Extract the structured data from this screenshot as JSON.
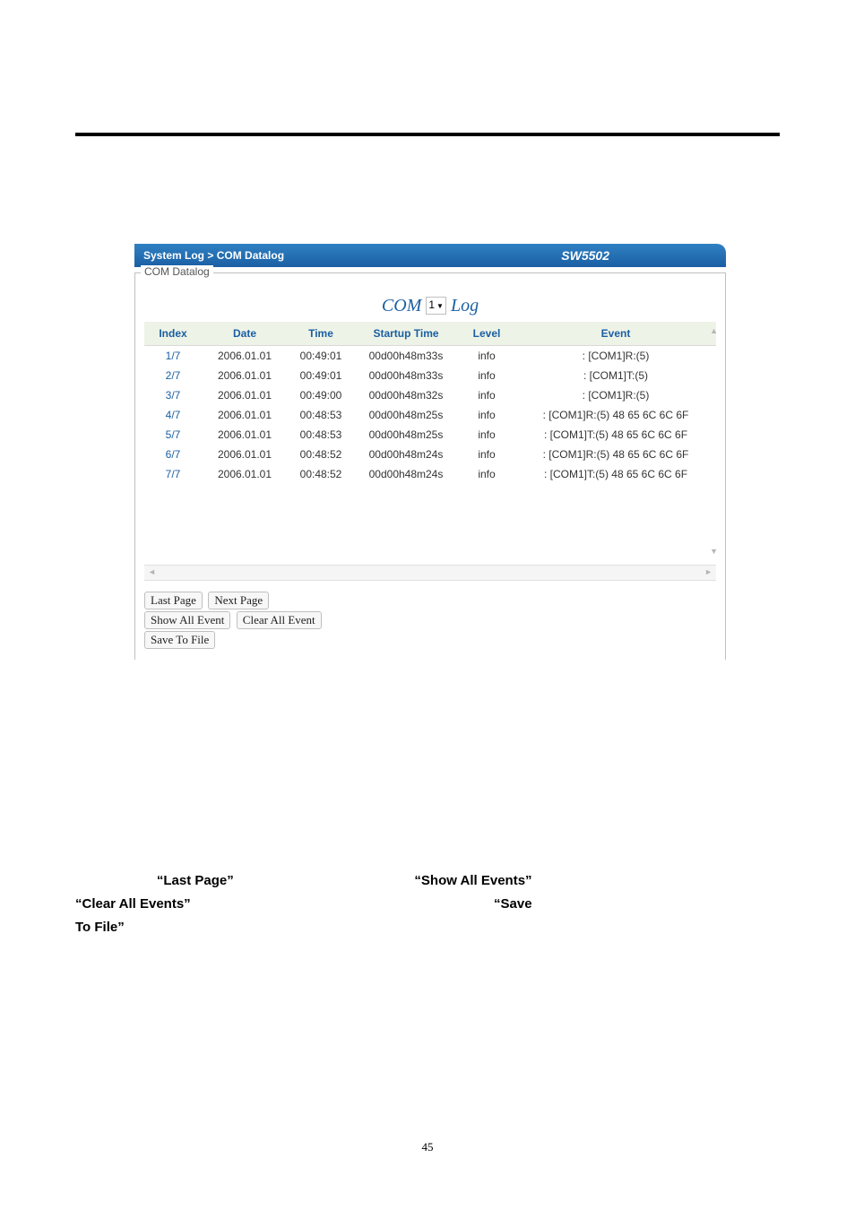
{
  "header": {
    "breadcrumb": "System Log > COM Datalog",
    "model": "SW5502"
  },
  "fieldset": {
    "legend": "COM Datalog"
  },
  "log_title": {
    "prefix": "COM",
    "selector_value": "1",
    "suffix": "Log"
  },
  "table": {
    "columns": [
      "Index",
      "Date",
      "Time",
      "Startup Time",
      "Level",
      "Event"
    ],
    "rows": [
      [
        "1/7",
        "2006.01.01",
        "00:49:01",
        "00d00h48m33s",
        "info",
        ": [COM1]R:(5)"
      ],
      [
        "2/7",
        "2006.01.01",
        "00:49:01",
        "00d00h48m33s",
        "info",
        ": [COM1]T:(5)"
      ],
      [
        "3/7",
        "2006.01.01",
        "00:49:00",
        "00d00h48m32s",
        "info",
        ": [COM1]R:(5)"
      ],
      [
        "4/7",
        "2006.01.01",
        "00:48:53",
        "00d00h48m25s",
        "info",
        ": [COM1]R:(5) 48 65 6C 6C 6F"
      ],
      [
        "5/7",
        "2006.01.01",
        "00:48:53",
        "00d00h48m25s",
        "info",
        ": [COM1]T:(5) 48 65 6C 6C 6F"
      ],
      [
        "6/7",
        "2006.01.01",
        "00:48:52",
        "00d00h48m24s",
        "info",
        ": [COM1]R:(5) 48 65 6C 6C 6F"
      ],
      [
        "7/7",
        "2006.01.01",
        "00:48:52",
        "00d00h48m24s",
        "info",
        ": [COM1]T:(5) 48 65 6C 6C 6F"
      ]
    ]
  },
  "buttons": {
    "last_page": "Last Page",
    "next_page": "Next Page",
    "show_all": "Show All Event",
    "clear_all": "Clear All Event",
    "save": "Save To File"
  },
  "paragraph": {
    "q_last_page": "“Last Page”",
    "q_show_all": "“Show All Events”",
    "q_clear_all": "“Clear All Events”",
    "q_save": "“Save",
    "to_file": "To File”"
  },
  "page_number": "45"
}
